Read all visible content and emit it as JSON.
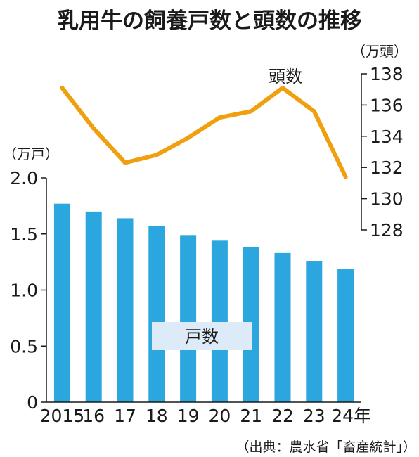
{
  "chart_data": {
    "type": "bar+line",
    "title": "乳用牛の飼養戸数と頭数の推移",
    "categories": [
      "2015",
      "16",
      "17",
      "18",
      "19",
      "20",
      "21",
      "22",
      "23",
      "24年"
    ],
    "bar_series": {
      "name": "戸数",
      "unit": "（万戸）",
      "values": [
        1.77,
        1.7,
        1.64,
        1.57,
        1.49,
        1.44,
        1.38,
        1.33,
        1.26,
        1.19
      ],
      "ylim": [
        0,
        2.0
      ],
      "ticks": [
        "0",
        "0.5",
        "1.0",
        "1.5",
        "2.0"
      ],
      "color": "#2ba6df"
    },
    "line_series": {
      "name": "頭数",
      "unit": "（万頭）",
      "values": [
        137.1,
        134.5,
        132.3,
        132.8,
        133.9,
        135.2,
        135.6,
        137.1,
        135.6,
        131.4
      ],
      "ylim": [
        128,
        138
      ],
      "ticks": [
        "128",
        "130",
        "132",
        "134",
        "136",
        "138"
      ],
      "color": "#f0a00f"
    },
    "source": "（出典：農水省「畜産統計」）"
  }
}
